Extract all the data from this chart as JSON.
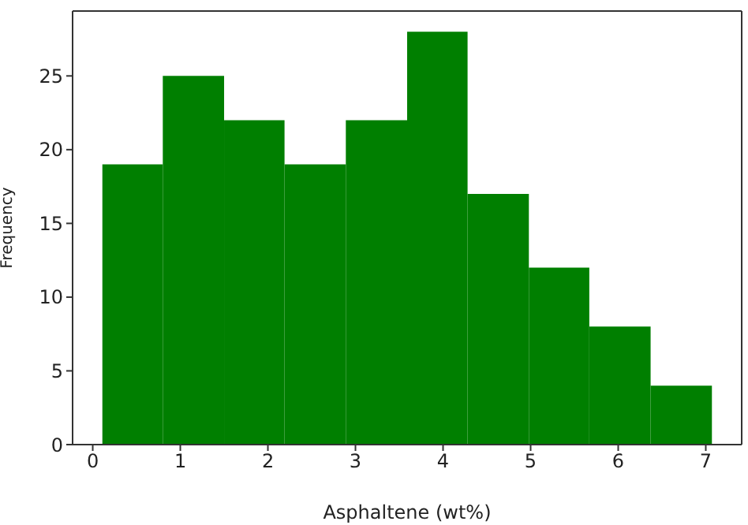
{
  "chart_data": {
    "type": "histogram",
    "xlabel": "Asphaltene (wt%)",
    "ylabel": "Frequency",
    "color": "#007f00",
    "bins": [
      0.11,
      0.8,
      1.5,
      2.19,
      2.89,
      3.59,
      4.28,
      4.98,
      5.67,
      6.37,
      7.07
    ],
    "values": [
      19,
      25,
      22,
      19,
      22,
      28,
      17,
      12,
      8,
      4
    ],
    "xlim": [
      -0.23,
      7.41
    ],
    "xticks": [
      0,
      1,
      2,
      3,
      4,
      5,
      6,
      7
    ],
    "ylim": [
      0,
      29.4
    ],
    "yticks": [
      0,
      5,
      10,
      15,
      20,
      25
    ]
  }
}
